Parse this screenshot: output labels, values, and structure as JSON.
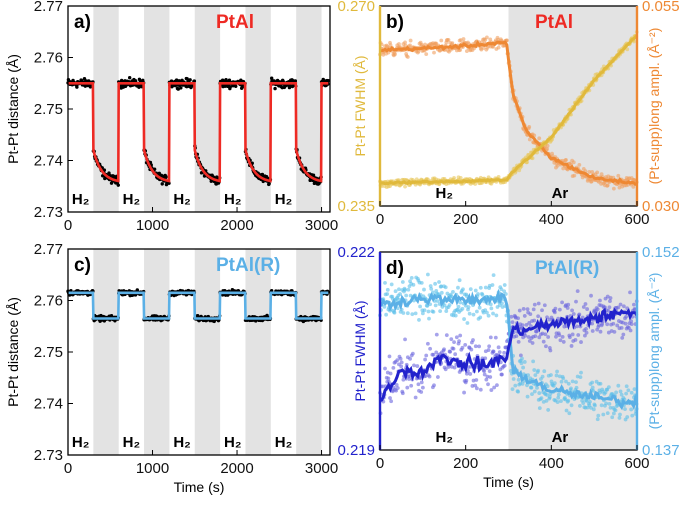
{
  "figure": {
    "panels": [
      {
        "letter": "a)",
        "sample": "PtAl",
        "sample_color": "#ee2a24",
        "chart_data": {
          "type": "scatter",
          "title": "PtAl",
          "xlabel": "",
          "ylabel": "Pt-Pt distance (Å)",
          "xlim": [
            0,
            3100
          ],
          "ylim": [
            2.73,
            2.77
          ],
          "xticks": [
            "0",
            "1000",
            "2000",
            "3000"
          ],
          "yticks": [
            "2.73",
            "2.74",
            "2.75",
            "2.76",
            "2.77"
          ],
          "shaded_ranges": [
            [
              300,
              600
            ],
            [
              900,
              1200
            ],
            [
              1500,
              1800
            ],
            [
              2100,
              2400
            ],
            [
              2700,
              3000
            ]
          ],
          "annotations": [
            {
              "text": "H₂",
              "x": 150
            },
            {
              "text": "H₂",
              "x": 750
            },
            {
              "text": "H₂",
              "x": 1350
            },
            {
              "text": "H₂",
              "x": 1950
            },
            {
              "text": "H₂",
              "x": 2550
            }
          ],
          "series": [
            {
              "name": "data",
              "color": "#000000",
              "style": "points"
            },
            {
              "name": "fit",
              "color": "#ee2a24",
              "style": "line"
            }
          ],
          "levels": {
            "high": 2.755,
            "low_start": 2.742,
            "low_end": 2.736
          }
        }
      },
      {
        "letter": "b)",
        "sample": "PtAl",
        "sample_color": "#ee2a24",
        "chart_data": {
          "type": "scatter",
          "title": "PtAl",
          "xlabel": "",
          "ylabel": "Pt-Pt FWHM (Å)",
          "ylabel_right": "(Pt-supp)long ampl. (Å⁻²)",
          "xlim": [
            0,
            600
          ],
          "ylim": [
            0.235,
            0.27
          ],
          "ylim_right": [
            0.03,
            0.055
          ],
          "xticks": [
            "0",
            "200",
            "400",
            "600"
          ],
          "yticks": [
            "0.235",
            "0.270"
          ],
          "yticks_right": [
            "0.030",
            "0.055"
          ],
          "shaded_ranges": [
            [
              300,
              600
            ]
          ],
          "annotations": [
            {
              "text": "H₂",
              "x": 150
            },
            {
              "text": "Ar",
              "x": 420
            }
          ],
          "series": [
            {
              "name": "Pt-Pt FWHM",
              "color": "#e0b93c",
              "axis": "left",
              "values": [
                [
                  0,
                  0.239
                ],
                [
                  100,
                  0.2392
                ],
                [
                  200,
                  0.2393
                ],
                [
                  295,
                  0.2396
                ],
                [
                  310,
                  0.241
                ],
                [
                  400,
                  0.247
                ],
                [
                  500,
                  0.257
                ],
                [
                  600,
                  0.265
                ]
              ]
            },
            {
              "name": "(Pt-supp)long ampl.",
              "color": "#ee8833",
              "axis": "right",
              "values": [
                [
                  0,
                  0.0495
                ],
                [
                  100,
                  0.0497
                ],
                [
                  200,
                  0.05
                ],
                [
                  295,
                  0.0505
                ],
                [
                  310,
                  0.044
                ],
                [
                  340,
                  0.0395
                ],
                [
                  400,
                  0.036
                ],
                [
                  500,
                  0.0335
                ],
                [
                  600,
                  0.0328
                ]
              ]
            }
          ]
        }
      },
      {
        "letter": "c)",
        "sample": "PtAl(R)",
        "sample_color": "#5bb0e6",
        "chart_data": {
          "type": "scatter",
          "title": "PtAl(R)",
          "xlabel": "Time (s)",
          "ylabel": "Pt-Pt distance (Å)",
          "xlim": [
            0,
            3100
          ],
          "ylim": [
            2.73,
            2.77
          ],
          "xticks": [
            "0",
            "1000",
            "2000",
            "3000"
          ],
          "yticks": [
            "2.73",
            "2.74",
            "2.75",
            "2.76",
            "2.77"
          ],
          "shaded_ranges": [
            [
              300,
              600
            ],
            [
              900,
              1200
            ],
            [
              1500,
              1800
            ],
            [
              2100,
              2400
            ],
            [
              2700,
              3000
            ]
          ],
          "annotations": [
            {
              "text": "H₂",
              "x": 150
            },
            {
              "text": "H₂",
              "x": 750
            },
            {
              "text": "H₂",
              "x": 1350
            },
            {
              "text": "H₂",
              "x": 1950
            },
            {
              "text": "H₂",
              "x": 2550
            }
          ],
          "series": [
            {
              "name": "data",
              "color": "#000000",
              "style": "points"
            },
            {
              "name": "fit",
              "color": "#5bb0e6",
              "style": "line"
            }
          ],
          "levels": {
            "high": 2.7615,
            "low_start": 2.7565,
            "low_end": 2.7565
          }
        }
      },
      {
        "letter": "d)",
        "sample": "PtAl(R)",
        "sample_color": "#5bb0e6",
        "chart_data": {
          "type": "scatter",
          "title": "PtAl(R)",
          "xlabel": "Time (s)",
          "ylabel": "Pt-Pt FWHM (Å)",
          "ylabel_right": "(Pt-supp)long ampl. (Å⁻²)",
          "xlim": [
            0,
            600
          ],
          "ylim": [
            0.219,
            0.222
          ],
          "ylim_right": [
            0.137,
            0.152
          ],
          "xticks": [
            "0",
            "200",
            "400",
            "600"
          ],
          "yticks": [
            "0.219",
            "0.222"
          ],
          "yticks_right": [
            "0.137",
            "0.152"
          ],
          "shaded_ranges": [
            [
              300,
              600
            ]
          ],
          "annotations": [
            {
              "text": "H₂",
              "x": 150
            },
            {
              "text": "Ar",
              "x": 420
            }
          ],
          "series": [
            {
              "name": "Pt-Pt FWHM",
              "color": "#2222cc",
              "axis": "left",
              "values": [
                [
                  0,
                  0.2198
                ],
                [
                  50,
                  0.2202
                ],
                [
                  100,
                  0.2202
                ],
                [
                  150,
                  0.2204
                ],
                [
                  200,
                  0.2203
                ],
                [
                  250,
                  0.2203
                ],
                [
                  295,
                  0.2204
                ],
                [
                  310,
                  0.2208
                ],
                [
                  400,
                  0.2209
                ],
                [
                  500,
                  0.221
                ],
                [
                  600,
                  0.2211
                ]
              ]
            },
            {
              "name": "(Pt-supp)long ampl.",
              "color": "#5bb0e6",
              "axis": "right",
              "values": [
                [
                  0,
                  0.148
                ],
                [
                  100,
                  0.1485
                ],
                [
                  200,
                  0.1483
                ],
                [
                  295,
                  0.1485
                ],
                [
                  310,
                  0.143
                ],
                [
                  400,
                  0.1415
                ],
                [
                  500,
                  0.141
                ],
                [
                  600,
                  0.1405
                ]
              ]
            }
          ]
        }
      }
    ]
  }
}
